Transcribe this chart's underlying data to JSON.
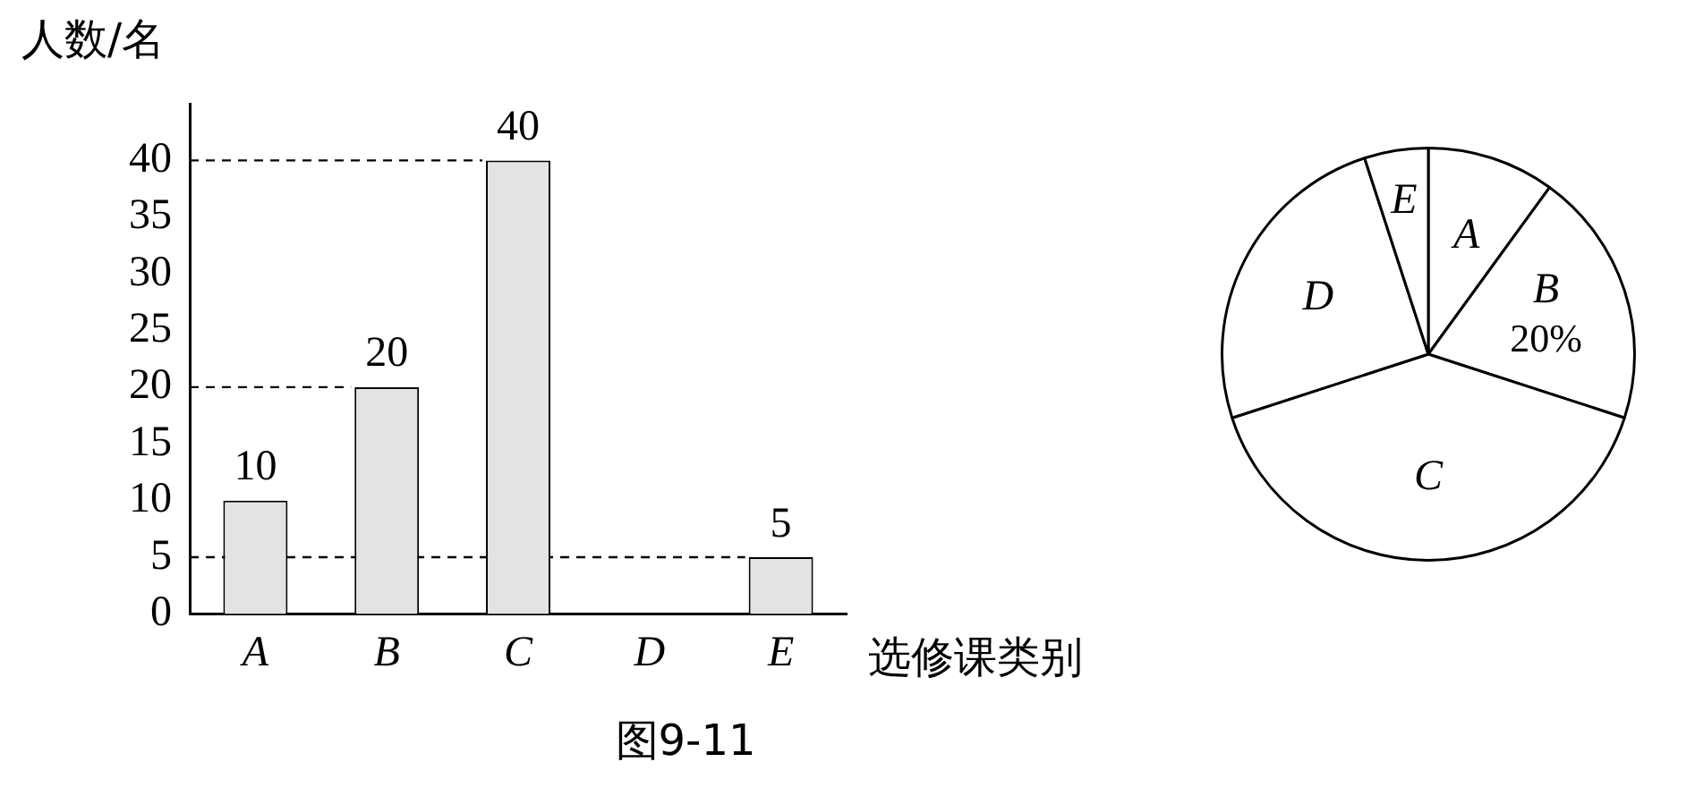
{
  "chart_data": [
    {
      "type": "bar",
      "ylabel": "人数/名",
      "xlabel": "选修课类别",
      "categories": [
        "A",
        "B",
        "C",
        "D",
        "E"
      ],
      "values": [
        10,
        20,
        40,
        null,
        5
      ],
      "color": "#e3e3e3",
      "ylim": [
        0,
        45
      ],
      "yticks": [
        0,
        5,
        10,
        15,
        20,
        25,
        30,
        35,
        40
      ],
      "data_labels": true,
      "grid": false,
      "legend": false,
      "ref_lines": [
        {
          "axis": "y",
          "value": 40,
          "line_style": "dashed",
          "color": "#000000"
        },
        {
          "axis": "y",
          "value": 20,
          "line_style": "dashed",
          "color": "#000000"
        },
        {
          "axis": "y",
          "value": 5,
          "line_style": "dashed",
          "color": "#000000"
        }
      ],
      "annotations": [
        "图9-11"
      ]
    },
    {
      "type": "pie",
      "categories": [
        "A",
        "B",
        "C",
        "D",
        "E"
      ],
      "values": [
        10,
        20,
        40,
        25,
        5
      ],
      "colors": [
        "#ffffff",
        "#ffffff",
        "#ffffff",
        "#ffffff",
        "#ffffff"
      ],
      "value_labels": [
        null,
        "20%",
        null,
        null,
        null
      ],
      "legend": false
    }
  ]
}
